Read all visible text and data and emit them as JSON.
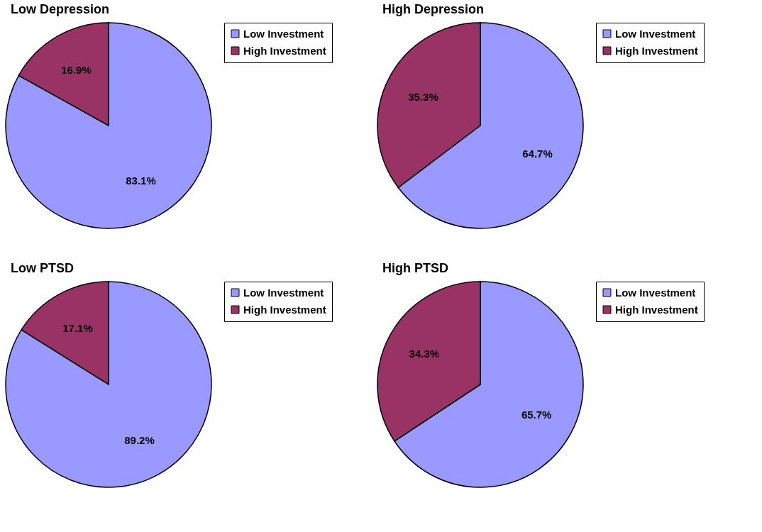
{
  "chart_data": [
    {
      "type": "pie",
      "title": "Low Depression",
      "categories": [
        "Low Investment",
        "High Investment"
      ],
      "values": [
        83.1,
        16.9
      ],
      "colors": [
        "#9999ff",
        "#993366"
      ],
      "value_labels": [
        "83.1%",
        "16.9%"
      ],
      "legend": "right"
    },
    {
      "type": "pie",
      "title": "High Depression",
      "categories": [
        "Low Investment",
        "High Investment"
      ],
      "values": [
        64.7,
        35.3
      ],
      "colors": [
        "#9999ff",
        "#993366"
      ],
      "value_labels": [
        "64.7%",
        "35.3%"
      ],
      "legend": "right"
    },
    {
      "type": "pie",
      "title": "Low PTSD",
      "categories": [
        "Low Investment",
        "High Investment"
      ],
      "values": [
        89.2,
        17.1
      ],
      "colors": [
        "#9999ff",
        "#993366"
      ],
      "value_labels": [
        "89.2%",
        "17.1%"
      ],
      "legend": "right"
    },
    {
      "type": "pie",
      "title": "High PTSD",
      "categories": [
        "Low Investment",
        "High Investment"
      ],
      "values": [
        65.7,
        34.3
      ],
      "colors": [
        "#9999ff",
        "#993366"
      ],
      "value_labels": [
        "65.7%",
        "34.3%"
      ],
      "legend": "right"
    }
  ]
}
